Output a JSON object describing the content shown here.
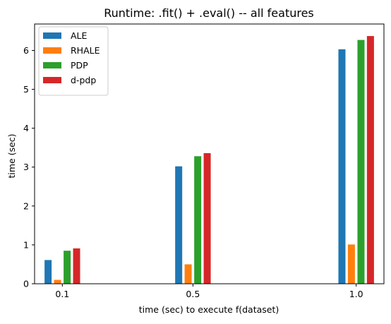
{
  "chart_data": {
    "type": "bar",
    "title": "Runtime: .fit() + .eval() -- all features",
    "xlabel": "time (sec) to execute f(dataset)",
    "ylabel": "time (sec)",
    "x": [
      0.1,
      0.5,
      1.0
    ],
    "x_tick_labels": [
      "0.1",
      "0.5",
      "1.0"
    ],
    "xlim": [
      0.015,
      1.085
    ],
    "ylim": [
      0,
      6.68
    ],
    "y_ticks": [
      0,
      1,
      2,
      3,
      4,
      5,
      6
    ],
    "y_tick_labels": [
      "0",
      "1",
      "2",
      "3",
      "4",
      "5",
      "6"
    ],
    "grid": false,
    "legend_position": "top-left",
    "series": [
      {
        "name": "ALE",
        "color": "#1f77b4",
        "values": [
          0.61,
          3.02,
          6.03
        ]
      },
      {
        "name": "RHALE",
        "color": "#ff7f0e",
        "values": [
          0.1,
          0.5,
          1.01
        ]
      },
      {
        "name": "PDP",
        "color": "#2ca02c",
        "values": [
          0.85,
          3.28,
          6.27
        ]
      },
      {
        "name": "d-pdp",
        "color": "#d62728",
        "values": [
          0.91,
          3.36,
          6.37
        ]
      }
    ]
  }
}
